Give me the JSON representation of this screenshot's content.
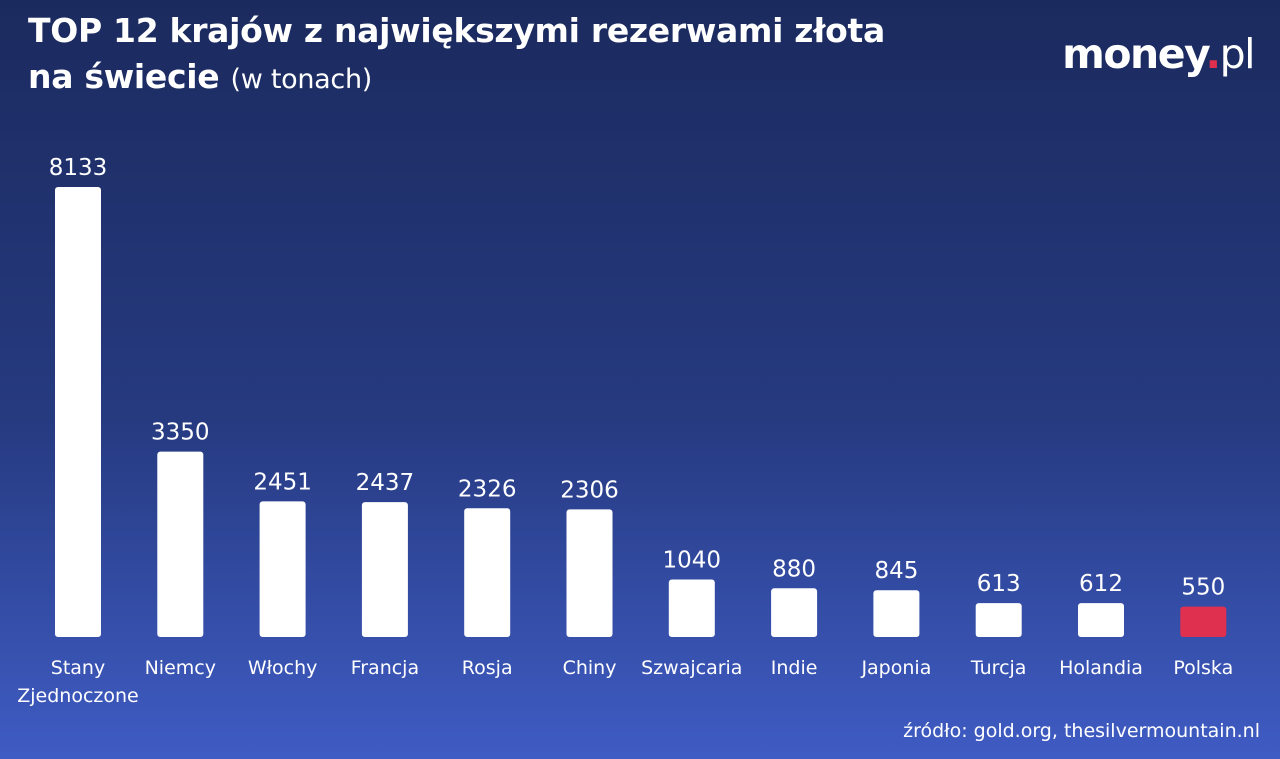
{
  "header": {
    "title_line1": "TOP 12 krajów z największymi rezerwami złota",
    "title_line2": "na świecie",
    "title_unit": "(w tonach)"
  },
  "logo": {
    "main": "money",
    "dot": ".",
    "suffix": "pl"
  },
  "source": "źródło: gold.org, thesilvermountain.nl",
  "colors": {
    "bar": "#ffffff",
    "highlight": "#e0304f"
  },
  "chart_data": {
    "type": "bar",
    "title": "TOP 12 krajów z największymi rezerwami złota na świecie (w tonach)",
    "categories": [
      "Stany Zjednoczone",
      "Niemcy",
      "Włochy",
      "Francja",
      "Rosja",
      "Chiny",
      "Szwajcaria",
      "Indie",
      "Japonia",
      "Turcja",
      "Holandia",
      "Polska"
    ],
    "values": [
      8133,
      3350,
      2451,
      2437,
      2326,
      2306,
      1040,
      880,
      845,
      613,
      612,
      550
    ],
    "highlight": "Polska",
    "xlabel": "",
    "ylabel": "",
    "grid": false,
    "legend": "none"
  }
}
